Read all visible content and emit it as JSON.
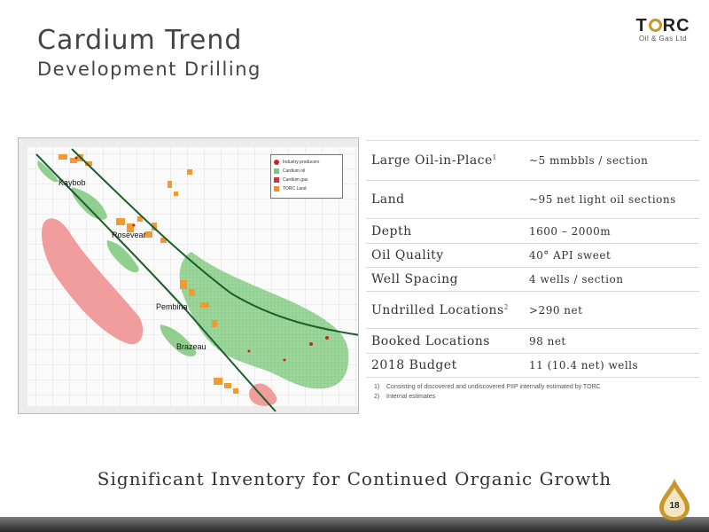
{
  "slide": {
    "title": "Cardium Trend",
    "subtitle": "Development Drilling",
    "page_number": "18",
    "tagline": "Significant Inventory for Continued Organic Growth"
  },
  "logo": {
    "name": "TORC",
    "subtitle": "Oil & Gas Ltd"
  },
  "map": {
    "labels": [
      "Kaybob",
      "Rosevear",
      "Pembina",
      "Brazeau"
    ],
    "legend": [
      {
        "label": "Industry producers",
        "color": "#cc2222"
      },
      {
        "label": "Cardium oil",
        "color": "#7cc47c"
      },
      {
        "label": "Cardium gas",
        "color": "#cc3344"
      },
      {
        "label": "TORC Land",
        "color": "#f0902a"
      }
    ],
    "colors": {
      "oil_fairway": "#8fd08f",
      "gas_fairway": "#f08c8c",
      "torc_land": "#f09a30",
      "trend_line": "#1d5e2a"
    }
  },
  "facts": [
    {
      "label": "Large Oil-in-Place",
      "sup": "1",
      "value": "~5 mmbbls / section"
    },
    {
      "label": "Land",
      "sup": "",
      "value": "~95 net light oil sections"
    },
    {
      "label": "Depth",
      "sup": "",
      "value": "1600 – 2000m"
    },
    {
      "label": "Oil Quality",
      "sup": "",
      "value": "40° API sweet"
    },
    {
      "label": "Well Spacing",
      "sup": "",
      "value": "4 wells / section"
    },
    {
      "label": "Undrilled Locations",
      "sup": "2",
      "value": ">290 net"
    },
    {
      "label": "Booked Locations",
      "sup": "",
      "value": "98 net"
    },
    {
      "label": "2018 Budget",
      "sup": "",
      "value": "11 (10.4 net) wells"
    }
  ],
  "notes": [
    {
      "num": "1)",
      "text": "Consisting of discovered and undiscovered PIIP internally estimated by TORC"
    },
    {
      "num": "2)",
      "text": "Internal estimates"
    }
  ]
}
